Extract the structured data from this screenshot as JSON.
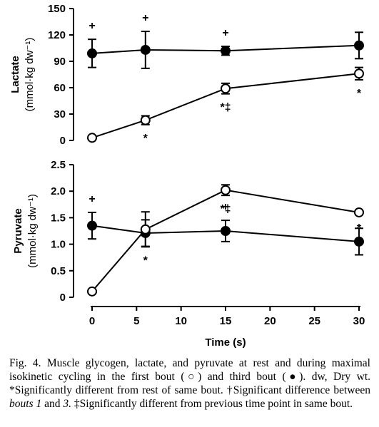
{
  "chart_data": [
    {
      "type": "line",
      "ylabel": "Lactate",
      "yunit": "(mmol·kg dw⁻¹)",
      "ylim": [
        0,
        150
      ],
      "yticks": [
        "0",
        "30",
        "60",
        "90",
        "120",
        "150"
      ],
      "x": [
        0,
        6,
        15,
        30
      ],
      "series": [
        {
          "marker": "filled-circle",
          "values": [
            99,
            103,
            102,
            108
          ],
          "err": [
            16,
            21,
            5,
            15
          ],
          "annotations": [
            "+",
            "+",
            "+",
            ""
          ]
        },
        {
          "marker": "open-circle",
          "values": [
            3,
            23,
            59,
            76
          ],
          "err": [
            0,
            5,
            6,
            7
          ],
          "annotations": [
            "",
            "*",
            "*‡",
            "*"
          ]
        }
      ]
    },
    {
      "type": "line",
      "ylabel": "Pyruvate",
      "yunit": "(mmol·kg dw⁻¹)",
      "ylim": [
        0,
        2.5
      ],
      "yticks": [
        "0",
        "0.5",
        "1.0",
        "1.5",
        "2.0",
        "2.5"
      ],
      "xlabel": "Time (s)",
      "xlim": [
        0,
        30
      ],
      "xticks": [
        "0",
        "5",
        "10",
        "15",
        "20",
        "25",
        "30"
      ],
      "x": [
        0,
        6,
        15,
        30
      ],
      "series": [
        {
          "marker": "filled-circle",
          "values": [
            1.35,
            1.21,
            1.25,
            1.05
          ],
          "err": [
            0.25,
            0.25,
            0.2,
            0.25
          ],
          "annotations": [
            "+",
            "",
            "+",
            ""
          ]
        },
        {
          "marker": "open-circle",
          "values": [
            0.11,
            1.28,
            2.02,
            1.6
          ],
          "err": [
            0,
            0.33,
            0.1,
            0.04
          ],
          "annotations": [
            "",
            "*",
            "*‡",
            "*"
          ]
        }
      ]
    }
  ],
  "caption": {
    "lead": "Fig. 4. Muscle glycogen, lactate, and pyruvate at rest and during maximal isokinetic cycling in the first bout (○) and third bout (●). dw, Dry wt. *Significantly different from rest of same bout. †Significant difference between ",
    "italic1": "bouts 1",
    "mid": " and ",
    "italic2": "3.",
    "tail": " ‡Significantly different from previous time point in same bout."
  }
}
